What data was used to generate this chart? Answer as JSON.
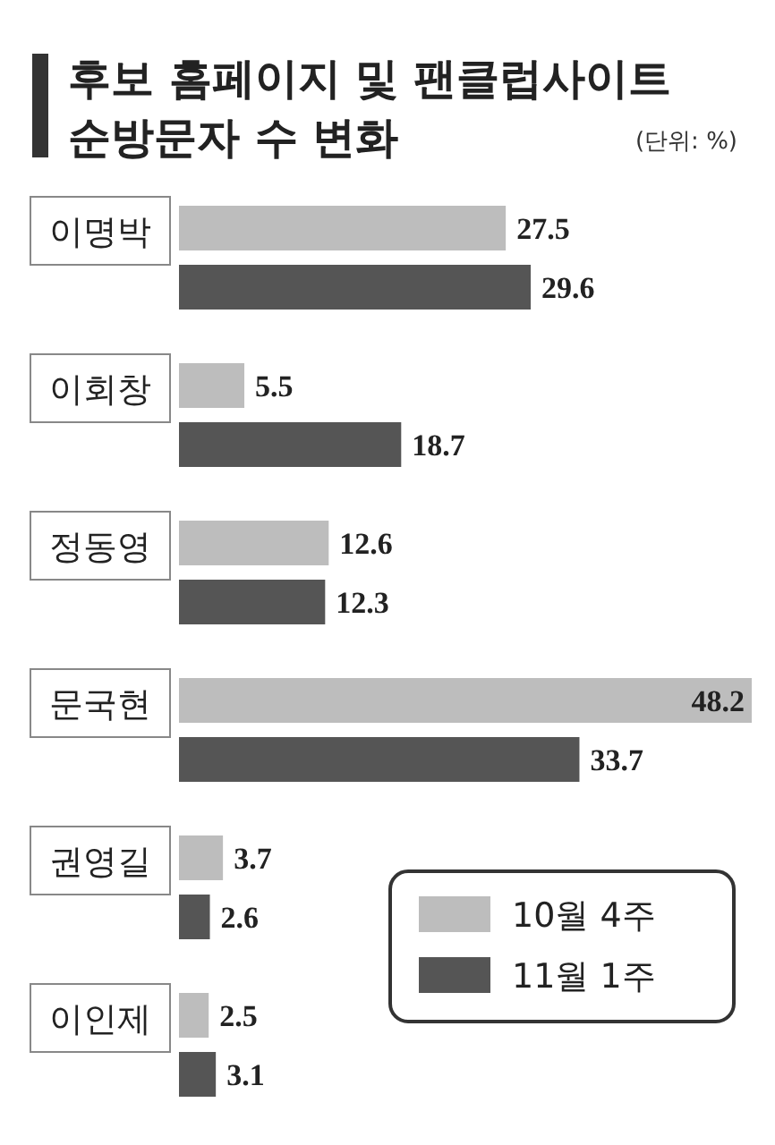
{
  "chart_data": {
    "type": "bar",
    "orientation": "horizontal",
    "title": "후보 홈페이지 및 팬클럽사이트\n순방문자 수 변화",
    "subtitle": "(단위: %)",
    "categories": [
      "이명박",
      "이회창",
      "정동영",
      "문국현",
      "권영길",
      "이인제"
    ],
    "series": [
      {
        "name": "10월 4주",
        "color": "#bdbdbd",
        "values": [
          27.5,
          5.5,
          12.6,
          48.2,
          3.7,
          2.5
        ]
      },
      {
        "name": "11월 1주",
        "color": "#555555",
        "values": [
          29.6,
          18.7,
          12.3,
          33.7,
          2.6,
          3.1
        ]
      }
    ],
    "data_labels": true,
    "legend": "bottom right",
    "grid": false
  }
}
